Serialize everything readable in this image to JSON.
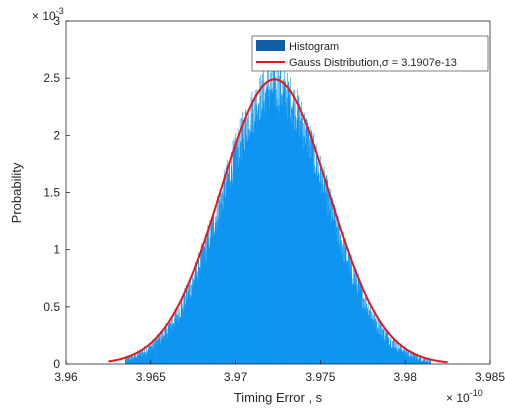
{
  "chart_data": {
    "type": "bar",
    "xlabel": "Timing Error , s",
    "ylabel": "Probability",
    "x_exponent_label": "× 10",
    "x_exponent_power": "-10",
    "y_exponent_label": "× 10",
    "y_exponent_power": "-3",
    "xlim": [
      3.96,
      3.985
    ],
    "ylim": [
      0,
      3
    ],
    "xticks": [
      "3.96",
      "3.965",
      "3.97",
      "3.975",
      "3.98",
      "3.985"
    ],
    "yticks": [
      "0",
      "0.5",
      "1",
      "1.5",
      "2",
      "2.5",
      "3"
    ],
    "xtick_values": [
      3.96,
      3.965,
      3.97,
      3.975,
      3.98,
      3.985
    ],
    "ytick_values": [
      0,
      0.5,
      1,
      1.5,
      2,
      2.5,
      3
    ],
    "grid": false,
    "legend_position": "top-right",
    "series": [
      {
        "name": "Histogram",
        "type": "bar",
        "color": "#0a93f0",
        "legend_color": "#0f5ea8",
        "bin_centers_start": 3.9635,
        "bin_centers_end": 3.9815,
        "mean": 3.9723,
        "peak": 2.42,
        "spread": 0.0031,
        "noise": 0.22
      },
      {
        "name": "Gauss Distribution,σ = 3.1907e-13",
        "type": "line",
        "color": "#e8161a",
        "mean": 3.9723,
        "peak": 2.49,
        "spread": 0.00319,
        "x_start": 3.9625,
        "x_end": 3.9825
      }
    ]
  }
}
